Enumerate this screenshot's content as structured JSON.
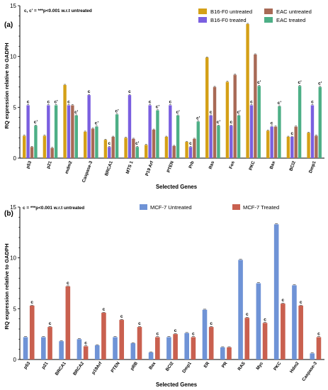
{
  "chart_data": [
    {
      "type": "bar",
      "panel_label": "(a)",
      "annotation": "c, c' = ***p<0.001 w.r.t untreated",
      "xlabel": "Selected Genes",
      "ylabel": "RQ expression relative to GADPH",
      "ylim": [
        0,
        15
      ],
      "yticks": [
        "0",
        "5",
        "10",
        "15"
      ],
      "legend_position": "top-right",
      "categories": [
        "p53",
        "p21",
        "mdm2",
        "Caspase-3",
        "BRCA1",
        "MTS 1",
        "P19 Arf",
        "PTEN",
        "Prb",
        "Ras",
        "Fos",
        "PKC",
        "Bax",
        "BCl2",
        "Dmp1"
      ],
      "series": [
        {
          "name": "B16-F0 untreated",
          "color": "#d4a017",
          "values": [
            2.2,
            2.2,
            7.2,
            2.6,
            1.8,
            2.0,
            1.3,
            2.1,
            1.6,
            9.9,
            7.5,
            13.2,
            2.7,
            2.1,
            2.5
          ],
          "labels": [
            "",
            "",
            "",
            "",
            "",
            "",
            "",
            "",
            "",
            "",
            "",
            "",
            "",
            "",
            ""
          ]
        },
        {
          "name": "B16-F0 treated",
          "color": "#7a5fe0",
          "values": [
            5.2,
            5.2,
            5.2,
            6.2,
            1.1,
            6.2,
            5.2,
            5.2,
            1.1,
            4.2,
            3.2,
            5.2,
            3.1,
            2.1,
            5.2
          ],
          "labels": [
            "c",
            "c",
            "c",
            "c",
            "c",
            "c",
            "c",
            "c",
            "c",
            "c",
            "c",
            "c",
            "c",
            "c",
            "c"
          ]
        },
        {
          "name": "EAC untreated",
          "color": "#a86a56",
          "values": [
            1.1,
            1.0,
            5.2,
            2.9,
            2.1,
            1.9,
            2.8,
            1.2,
            1.9,
            7.0,
            8.2,
            10.2,
            3.1,
            3.1,
            2.2
          ],
          "labels": [
            "",
            "",
            "",
            "",
            "",
            "",
            "",
            "",
            "",
            "",
            "",
            "",
            "",
            "",
            ""
          ]
        },
        {
          "name": "EAC treated",
          "color": "#4daf86",
          "values": [
            3.2,
            5.2,
            4.2,
            3.1,
            4.3,
            1.1,
            4.7,
            4.2,
            3.6,
            3.2,
            4.2,
            7.1,
            5.1,
            7.1,
            7.0
          ],
          "labels": [
            "c'",
            "c'",
            "c'",
            "c'",
            "c'",
            "c'",
            "c'",
            "c'",
            "c'",
            "c'",
            "c'",
            "c'",
            "c'",
            "c'",
            "c'"
          ]
        }
      ]
    },
    {
      "type": "bar",
      "panel_label": "(b)",
      "annotation": "c = ***p<0.001 w.r.t untreated",
      "xlabel": "Selected Genes",
      "ylabel": "RQ expression relative to GADPH",
      "ylim": [
        0,
        15
      ],
      "yticks": [
        "0",
        "5",
        "10",
        "15"
      ],
      "legend_position": "top",
      "categories": [
        "p53",
        "p21",
        "BRCA1",
        "BRCA2",
        "p19Arf",
        "PTEN",
        "pRB",
        "Bax",
        "BCl2",
        "Dmp1",
        "ER",
        "PR",
        "RAS",
        "Myc",
        "PKC",
        "Hdm2",
        "Caspase-3"
      ],
      "series": [
        {
          "name": "MCF-7 Untreated",
          "color": "#6f93d6",
          "values": [
            2.2,
            2.2,
            1.8,
            2.0,
            1.4,
            2.2,
            1.6,
            0.7,
            2.2,
            2.6,
            4.9,
            1.2,
            9.8,
            7.5,
            13.3,
            7.3,
            0.6
          ],
          "labels": [
            "",
            "",
            "",
            "",
            "",
            "",
            "",
            "",
            "",
            "",
            "",
            "",
            "",
            "",
            "",
            "",
            ""
          ]
        },
        {
          "name": "MCF-7 Treated",
          "color": "#c9604f",
          "values": [
            5.3,
            3.2,
            7.2,
            1.3,
            4.6,
            3.9,
            3.2,
            2.2,
            2.5,
            2.2,
            3.2,
            1.2,
            4.1,
            3.6,
            5.5,
            5.3,
            2.2
          ],
          "labels": [
            "c",
            "c",
            "c",
            "c",
            "c",
            "c",
            "c",
            "c",
            "c",
            "c",
            "c",
            "",
            "c",
            "c",
            "c",
            "c",
            "c"
          ]
        }
      ]
    }
  ]
}
